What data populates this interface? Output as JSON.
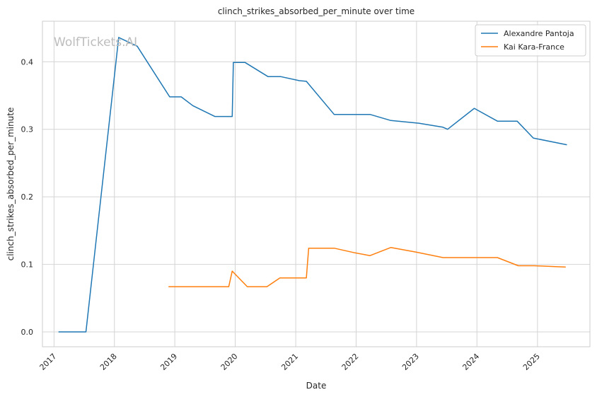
{
  "chart_data": {
    "type": "line",
    "title": "clinch_strikes_absorbed_per_minute over time",
    "xlabel": "Date",
    "ylabel": "clinch_strikes_absorbed_per_minute",
    "watermark": "WolfTickets.AI",
    "x_ticks": [
      "2017",
      "2018",
      "2019",
      "2020",
      "2021",
      "2022",
      "2023",
      "2024",
      "2025"
    ],
    "y_ticks": [
      "0.0",
      "0.1",
      "0.2",
      "0.3",
      "0.4"
    ],
    "xlim": [
      "2016-10-23",
      "2025-11-14"
    ],
    "ylim": [
      -0.022,
      0.46
    ],
    "grid": true,
    "legend_position": "top-right",
    "series": [
      {
        "name": "Alexandre Pantoja",
        "color": "#1f77b4",
        "points": [
          [
            "2017-01-28",
            0.0
          ],
          [
            "2017-07-13",
            0.0
          ],
          [
            "2018-01-27",
            0.436
          ],
          [
            "2018-05-19",
            0.423
          ],
          [
            "2018-12-01",
            0.348
          ],
          [
            "2019-02-09",
            0.348
          ],
          [
            "2019-04-20",
            0.335
          ],
          [
            "2019-08-31",
            0.319
          ],
          [
            "2019-12-14",
            0.319
          ],
          [
            "2019-12-21",
            0.399
          ],
          [
            "2020-02-29",
            0.399
          ],
          [
            "2020-07-18",
            0.378
          ],
          [
            "2020-10-03",
            0.378
          ],
          [
            "2021-01-23",
            0.372
          ],
          [
            "2021-03-06",
            0.371
          ],
          [
            "2021-08-21",
            0.322
          ],
          [
            "2022-03-26",
            0.322
          ],
          [
            "2022-07-30",
            0.313
          ],
          [
            "2023-01-15",
            0.309
          ],
          [
            "2023-06-10",
            0.303
          ],
          [
            "2023-07-08",
            0.3
          ],
          [
            "2023-12-16",
            0.331
          ],
          [
            "2024-05-04",
            0.312
          ],
          [
            "2024-08-31",
            0.312
          ],
          [
            "2024-12-07",
            0.287
          ],
          [
            "2025-06-28",
            0.277
          ]
        ]
      },
      {
        "name": "Kai Kara-France",
        "color": "#ff7f0e",
        "points": [
          [
            "2018-11-24",
            0.067
          ],
          [
            "2019-06-22",
            0.067
          ],
          [
            "2019-11-23",
            0.067
          ],
          [
            "2019-12-14",
            0.09
          ],
          [
            "2020-03-14",
            0.067
          ],
          [
            "2020-07-11",
            0.067
          ],
          [
            "2020-09-27",
            0.08
          ],
          [
            "2021-03-06",
            0.08
          ],
          [
            "2021-03-20",
            0.124
          ],
          [
            "2021-08-21",
            0.124
          ],
          [
            "2021-12-25",
            0.117
          ],
          [
            "2022-03-26",
            0.113
          ],
          [
            "2022-07-30",
            0.125
          ],
          [
            "2023-01-01",
            0.118
          ],
          [
            "2023-06-10",
            0.11
          ],
          [
            "2024-05-04",
            0.11
          ],
          [
            "2024-09-07",
            0.098
          ],
          [
            "2024-12-14",
            0.098
          ],
          [
            "2025-06-21",
            0.096
          ]
        ]
      }
    ]
  }
}
